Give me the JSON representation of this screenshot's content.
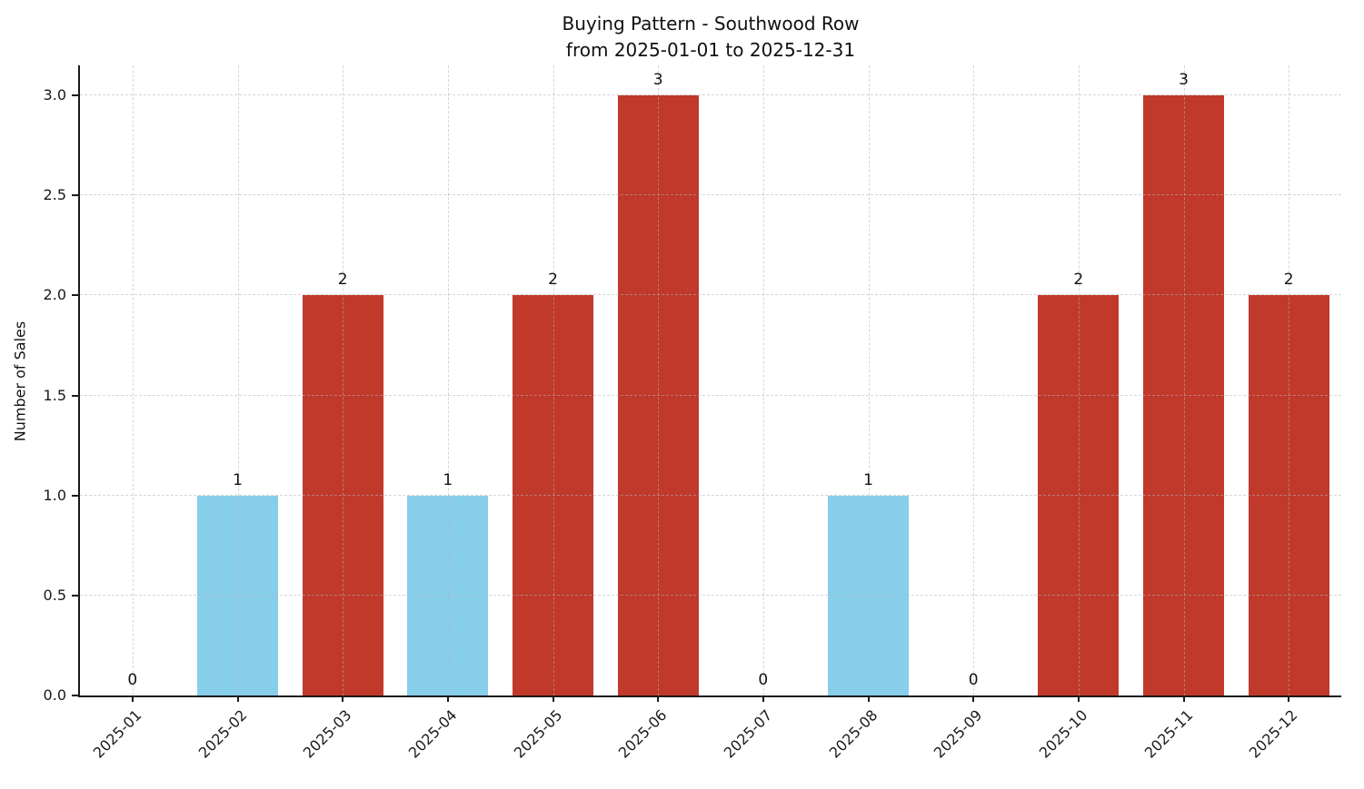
{
  "figure": {
    "title_line1": "Buying Pattern - Southwood Row",
    "title_line2": "from 2025-01-01 to 2025-12-31"
  },
  "chart_data": {
    "type": "bar",
    "title": "Buying Pattern - Southwood Row",
    "subtitle": "from 2025-01-01 to 2025-12-31",
    "categories": [
      "2025-01",
      "2025-02",
      "2025-03",
      "2025-04",
      "2025-05",
      "2025-06",
      "2025-07",
      "2025-08",
      "2025-09",
      "2025-10",
      "2025-11",
      "2025-12"
    ],
    "values": [
      0,
      1,
      2,
      1,
      2,
      3,
      0,
      1,
      0,
      2,
      3,
      2
    ],
    "value_labels": [
      "0",
      "1",
      "2",
      "1",
      "2",
      "3",
      "0",
      "1",
      "0",
      "2",
      "3",
      "2"
    ],
    "bar_colors": [
      "#87ceeb",
      "#87ceeb",
      "#c0392b",
      "#87ceeb",
      "#c0392b",
      "#c0392b",
      "#87ceeb",
      "#87ceeb",
      "#87ceeb",
      "#c0392b",
      "#c0392b",
      "#c0392b"
    ],
    "xlabel": "",
    "ylabel": "Number of Sales",
    "ylim": [
      0,
      3.15
    ],
    "yticks": [
      0.0,
      0.5,
      1.0,
      1.5,
      2.0,
      2.5,
      3.0
    ],
    "grid": true,
    "grid_style": "dashed",
    "legend_position": "none",
    "colors": {
      "bar_low": "#87ceeb",
      "bar_high": "#c0392b",
      "axis": "#1a1a1a",
      "grid": "#b2b2b2",
      "background": "#ffffff"
    }
  }
}
